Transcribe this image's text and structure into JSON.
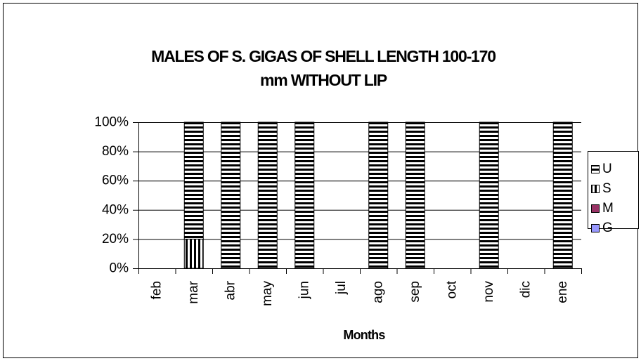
{
  "chart_data": {
    "type": "stacked_bar_percent",
    "title": [
      "MALES OF S. GIGAS OF SHELL LENGTH 100-170",
      "mm WITHOUT LIP"
    ],
    "x_label": "Months",
    "categories": [
      "feb",
      "mar",
      "abr",
      "may",
      "jun",
      "jul",
      "ago",
      "sep",
      "oct",
      "nov",
      "dic",
      "ene"
    ],
    "series": [
      {
        "name": "U",
        "color": "#000000",
        "pattern": "horizontal",
        "values": [
          0,
          80,
          100,
          100,
          100,
          0,
          100,
          100,
          0,
          100,
          0,
          100
        ]
      },
      {
        "name": "S",
        "color": "#000000",
        "pattern": "vertical",
        "values": [
          0,
          20,
          0,
          0,
          0,
          0,
          0,
          0,
          0,
          0,
          0,
          0
        ]
      },
      {
        "name": "M",
        "color": "#993366",
        "values": [
          0,
          0,
          0,
          0,
          0,
          0,
          0,
          0,
          0,
          0,
          0,
          0
        ]
      },
      {
        "name": "G",
        "color": "#9999ff",
        "values": [
          0,
          0,
          0,
          0,
          0,
          0,
          0,
          0,
          0,
          0,
          0,
          0
        ]
      }
    ],
    "ylim": [
      0,
      100
    ],
    "yticks": [
      {
        "value": 0,
        "label": "0%"
      },
      {
        "value": 20,
        "label": "20%"
      },
      {
        "value": 40,
        "label": "40%"
      },
      {
        "value": 60,
        "label": "60%"
      },
      {
        "value": 80,
        "label": "80%"
      },
      {
        "value": 100,
        "label": "100%"
      }
    ],
    "grid": true,
    "legend": "right"
  }
}
